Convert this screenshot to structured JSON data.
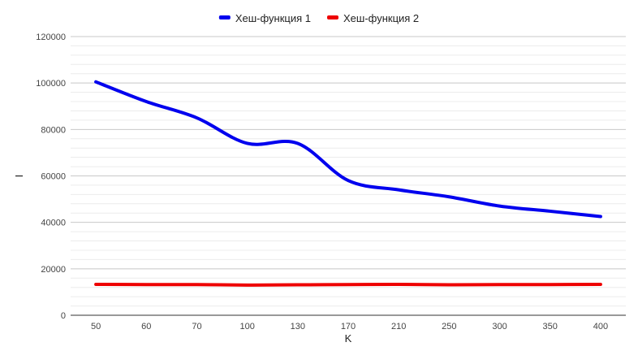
{
  "chart_data": {
    "type": "line",
    "title": "",
    "xlabel": "K",
    "ylabel": "I",
    "categories": [
      "50",
      "60",
      "70",
      "100",
      "130",
      "170",
      "210",
      "250",
      "300",
      "350",
      "400"
    ],
    "series": [
      {
        "name": "Хеш-функция 1",
        "color": "#0000ee",
        "values": [
          100500,
          92000,
          85000,
          74000,
          74000,
          58000,
          54000,
          51000,
          47000,
          44800,
          42500
        ]
      },
      {
        "name": "Хеш-функция 2",
        "color": "#ee0000",
        "values": [
          13300,
          13200,
          13200,
          13000,
          13100,
          13200,
          13300,
          13100,
          13200,
          13200,
          13300
        ]
      }
    ],
    "ylim": [
      0,
      120000
    ],
    "yticks": [
      0,
      20000,
      40000,
      60000,
      80000,
      100000,
      120000
    ],
    "grid": true,
    "minor_grid": true,
    "legend_position": "top"
  }
}
